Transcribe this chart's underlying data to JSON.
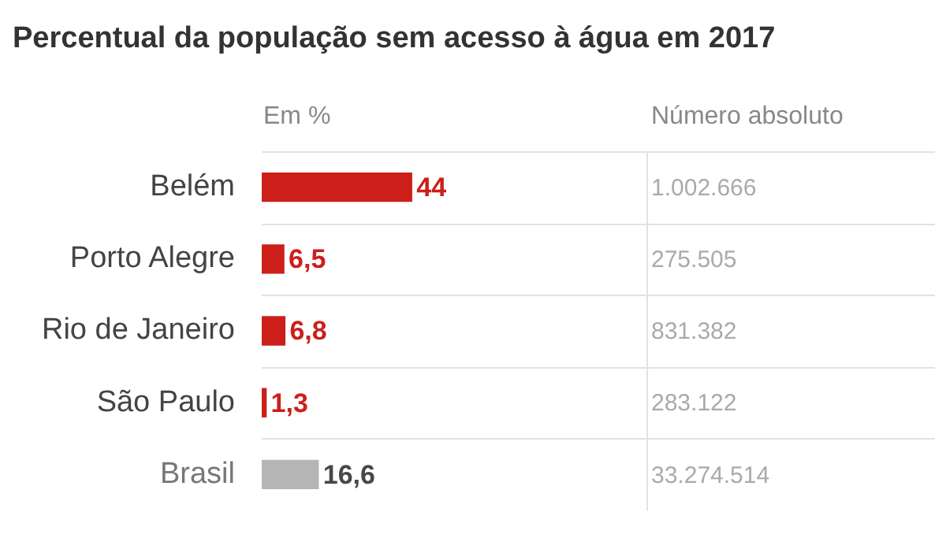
{
  "chart_data": {
    "type": "bar",
    "orientation": "horizontal",
    "title": "Percentual da população sem acesso à água em 2017",
    "xlabel": "Em %",
    "categories": [
      "Belém",
      "Porto Alegre",
      "Rio de Janeiro",
      "São Paulo",
      "Brasil"
    ],
    "values": [
      44,
      6.5,
      6.8,
      1.3,
      16.6
    ],
    "colors": [
      "#cc1f1a",
      "#cc1f1a",
      "#cc1f1a",
      "#cc1f1a",
      "#b5b5b5"
    ],
    "value_labels": [
      "44",
      "6,5",
      "6,8",
      "1,3",
      "16,6"
    ],
    "grid": "y",
    "legend": false,
    "annotations": [
      "Número absoluto",
      "1.002.666",
      "275.505",
      "831.382",
      "283.122",
      "33.274.514"
    ]
  }
}
